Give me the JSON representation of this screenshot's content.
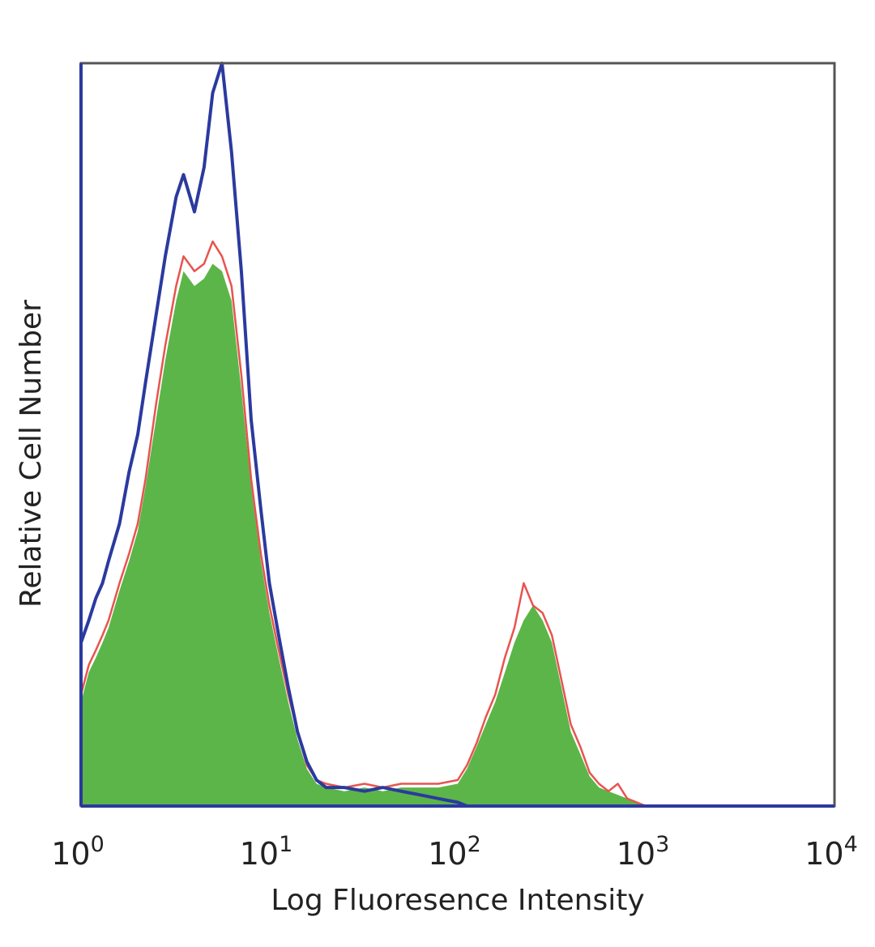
{
  "chart_data": {
    "type": "area",
    "xlabel": "Log Fluoresence Intensity",
    "ylabel": "Relative Cell Number",
    "xscale": "log",
    "xlim": [
      1,
      10000
    ],
    "ylim": [
      0,
      100
    ],
    "grid": false,
    "x_ticks": [
      {
        "base": "10",
        "exp": "0"
      },
      {
        "base": "10",
        "exp": "1"
      },
      {
        "base": "10",
        "exp": "2"
      },
      {
        "base": "10",
        "exp": "3"
      },
      {
        "base": "10",
        "exp": "4"
      }
    ],
    "x": [
      1.0,
      1.1,
      1.2,
      1.3,
      1.4,
      1.6,
      1.8,
      2.0,
      2.2,
      2.5,
      2.8,
      3.2,
      3.5,
      4.0,
      4.5,
      5.0,
      5.6,
      6.3,
      7.1,
      8.0,
      9.0,
      10.0,
      11.2,
      12.6,
      14.1,
      15.8,
      17.8,
      20,
      25,
      32,
      40,
      50,
      63,
      79,
      100,
      112,
      126,
      141,
      158,
      178,
      200,
      224,
      251,
      282,
      316,
      355,
      398,
      447,
      501,
      562,
      631,
      708,
      794,
      891,
      1000,
      2000,
      5000,
      10000
    ],
    "series": [
      {
        "style": "filled",
        "color": "#5cb548",
        "values": [
          14,
          18,
          20,
          22,
          24,
          29,
          33,
          37,
          43,
          52,
          60,
          68,
          72,
          70,
          71,
          73,
          72,
          68,
          56,
          43,
          33,
          26,
          20,
          14,
          9,
          5,
          3,
          2.5,
          2,
          2.5,
          2,
          2.5,
          2.5,
          2.5,
          3,
          5,
          8,
          11,
          14,
          18,
          22,
          25,
          27,
          25,
          22,
          16,
          10,
          7,
          4,
          2.5,
          2,
          1.5,
          1,
          0.5,
          0,
          0,
          0,
          0
        ]
      },
      {
        "style": "outline",
        "color": "#e8544f",
        "values": [
          15,
          19,
          21,
          23,
          25,
          30,
          34,
          38,
          44,
          54,
          62,
          70,
          74,
          72,
          73,
          76,
          74,
          70,
          58,
          44,
          34,
          27,
          21,
          15,
          10,
          5.5,
          3.5,
          3,
          2.5,
          3,
          2.5,
          3,
          3,
          3,
          3.5,
          5.5,
          8.5,
          12,
          15,
          20,
          24,
          30,
          27,
          26,
          23,
          17,
          11,
          8,
          4.5,
          3,
          2,
          3,
          1,
          0.5,
          0,
          0,
          0,
          0
        ]
      },
      {
        "style": "outline",
        "color": "#2b3a9e",
        "values": [
          22,
          25,
          28,
          30,
          33,
          38,
          45,
          50,
          57,
          66,
          74,
          82,
          85,
          80,
          86,
          96,
          100,
          88,
          72,
          52,
          40,
          30,
          23,
          16,
          10,
          6,
          3.5,
          2.5,
          2.5,
          2,
          2.5,
          2,
          1.5,
          1,
          0.5,
          0,
          0,
          0,
          0,
          0,
          0,
          0,
          0,
          0,
          0,
          0,
          0,
          0,
          0,
          0,
          0,
          0,
          0,
          0,
          0,
          0,
          0,
          0
        ]
      }
    ]
  }
}
